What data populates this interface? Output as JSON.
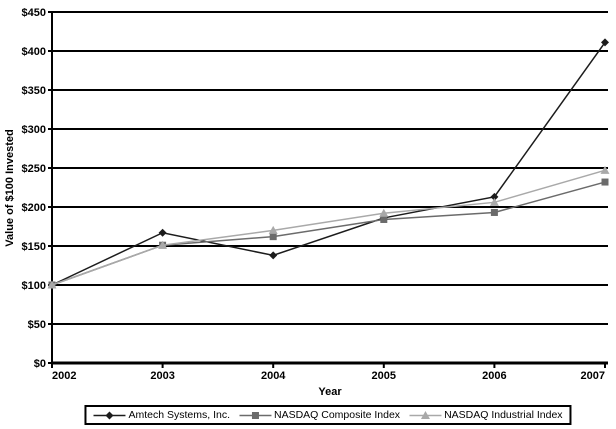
{
  "page": {
    "background": "#ffffff"
  },
  "chart_data": {
    "type": "line",
    "title": "",
    "xlabel": "Year",
    "ylabel": "Value of $100 Invested",
    "x": [
      "2002",
      "2003",
      "2004",
      "2005",
      "2006",
      "2007"
    ],
    "ylim": [
      0,
      450
    ],
    "ytick_step": 50,
    "ytick_prefix": "$",
    "grid": "horizontal-black",
    "gridline_color": "#000000",
    "axis_color": "#000000",
    "legend_position": "bottom-center-boxed",
    "series": [
      {
        "name": "Amtech Systems, Inc.",
        "marker": "diamond",
        "color": "#1c1c1c",
        "values": [
          100,
          167,
          138,
          186,
          213,
          411
        ]
      },
      {
        "name": "NASDAQ Composite Index",
        "marker": "square",
        "color": "#6b6b6b",
        "values": [
          100,
          151,
          162,
          184,
          193,
          232
        ]
      },
      {
        "name": "NASDAQ Industrial Index",
        "marker": "triangle",
        "color": "#a9a9a9",
        "values": [
          100,
          151,
          170,
          192,
          206,
          247
        ]
      }
    ]
  }
}
